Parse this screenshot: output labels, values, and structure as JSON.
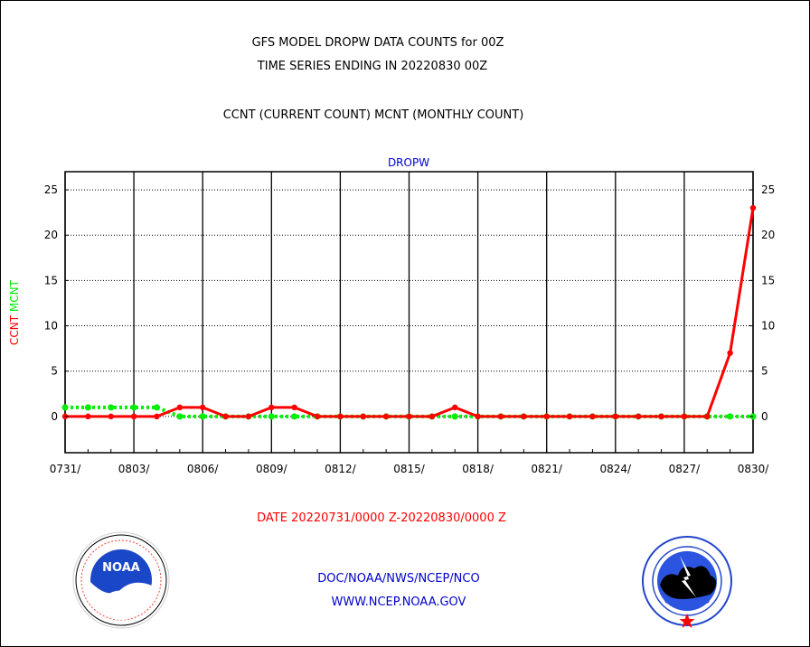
{
  "header": {
    "title_line1": "GFS MODEL DROPW DATA COUNTS for 00Z",
    "title_line2": "TIME SERIES ENDING IN 20220830 00Z",
    "subtitle": "CCNT (CURRENT COUNT) MCNT (MONTHLY COUNT)"
  },
  "footer": {
    "date_range": "DATE 20220731/0000 Z-20220830/0000 Z",
    "org_line": "DOC/NOAA/NWS/NCEP/NCO",
    "url_line": "WWW.NCEP.NOAA.GOV",
    "noaa_logo_text": "NOAA",
    "noaa_ring_text": "NATIONAL OCEANIC AND ATMOSPHERIC ADMINISTRATION · U.S. DEPARTMENT OF COMMERCE",
    "nws_ring_text": "NATIONAL WEATHER SERVICE"
  },
  "colors": {
    "ccnt": "#ff0000",
    "mcnt": "#00ee00",
    "panel_title": "#0000cc",
    "date_text": "#ff0000",
    "link_text": "#0000cc"
  },
  "chart_data": {
    "type": "line",
    "title": "DROPW",
    "ylabel_parts": [
      {
        "text": "CCNT",
        "color": "#ff0000"
      },
      {
        "text": "MCNT",
        "color": "#00ee00"
      }
    ],
    "x": [
      "0731",
      "0801",
      "0802",
      "0803",
      "0804",
      "0805",
      "0806",
      "0807",
      "0808",
      "0809",
      "0810",
      "0811",
      "0812",
      "0813",
      "0814",
      "0815",
      "0816",
      "0817",
      "0818",
      "0819",
      "0820",
      "0821",
      "0822",
      "0823",
      "0824",
      "0825",
      "0826",
      "0827",
      "0828",
      "0829",
      "0830"
    ],
    "x_tick_labels": [
      "0731/",
      "0803/",
      "0806/",
      "0809/",
      "0812/",
      "0815/",
      "0818/",
      "0821/",
      "0824/",
      "0827/",
      "0830/"
    ],
    "series": [
      {
        "name": "CCNT",
        "color": "#ff0000",
        "style": "solid",
        "values": [
          0,
          0,
          0,
          0,
          0,
          1,
          1,
          0,
          0,
          1,
          1,
          0,
          0,
          0,
          0,
          0,
          0,
          1,
          0,
          0,
          0,
          0,
          0,
          0,
          0,
          0,
          0,
          0,
          0,
          7,
          23
        ]
      },
      {
        "name": "MCNT",
        "color": "#00ee00",
        "style": "dotted",
        "values": [
          1,
          1,
          1,
          1,
          1,
          0,
          0,
          0,
          0,
          0,
          0,
          0,
          0,
          0,
          0,
          0,
          0,
          0,
          0,
          0,
          0,
          0,
          0,
          0,
          0,
          0,
          0,
          0,
          0,
          0,
          0
        ]
      }
    ],
    "ylim": [
      -4,
      27
    ],
    "yticks": [
      0,
      5,
      10,
      15,
      20,
      25
    ],
    "grid": true,
    "legend": "none"
  }
}
